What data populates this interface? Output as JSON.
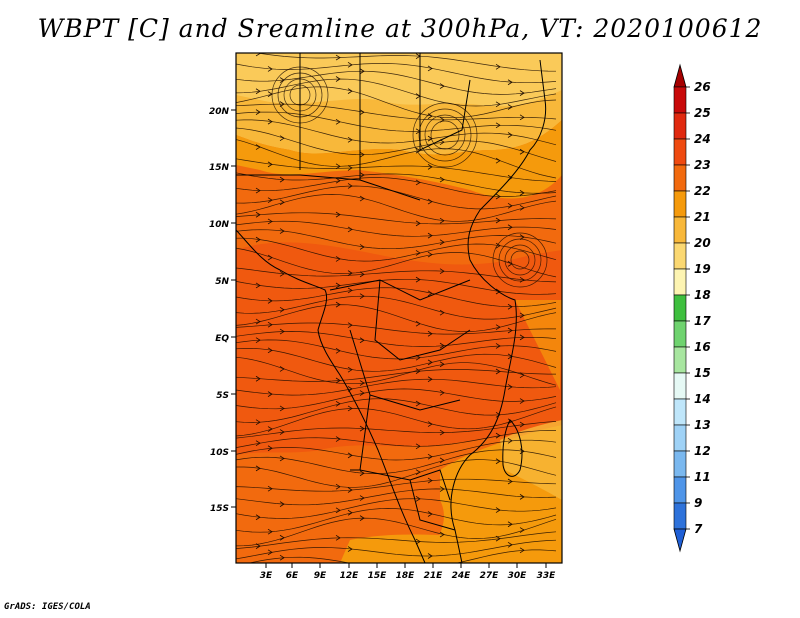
{
  "title": "WBPT [C] and Sreamline at 300hPa, VT: 2020100612",
  "credit": "GrADS: IGES/COLA",
  "map": {
    "lat_ticks": [
      "20N",
      "15N",
      "10N",
      "5N",
      "EQ",
      "5S",
      "10S",
      "15S"
    ],
    "lon_ticks": [
      "3E",
      "6E",
      "9E",
      "12E",
      "15E",
      "18E",
      "21E",
      "24E",
      "27E",
      "30E",
      "33E"
    ]
  },
  "colorbar": {
    "levels": [
      {
        "label": "26",
        "color": "#a50000"
      },
      {
        "label": "25",
        "color": "#c80a0a"
      },
      {
        "label": "24",
        "color": "#e0290f"
      },
      {
        "label": "23",
        "color": "#ef4a10"
      },
      {
        "label": "22",
        "color": "#f26a0e"
      },
      {
        "label": "21",
        "color": "#f59a0c"
      },
      {
        "label": "20",
        "color": "#f8b83a"
      },
      {
        "label": "19",
        "color": "#fbd872"
      },
      {
        "label": "18",
        "color": "#fdf4b2"
      },
      {
        "label": "17",
        "color": "#3fbf3f"
      },
      {
        "label": "16",
        "color": "#6fd36f"
      },
      {
        "label": "15",
        "color": "#a8e6a0"
      },
      {
        "label": "14",
        "color": "#e6f9f5"
      },
      {
        "label": "13",
        "color": "#bfe6fa"
      },
      {
        "label": "12",
        "color": "#9fd2f6"
      },
      {
        "label": "11",
        "color": "#7ab8ef"
      },
      {
        "label": "9",
        "color": "#4f95e8"
      },
      {
        "label": "7",
        "color": "#2e72da"
      }
    ],
    "bottom_color": "#1f5fd6"
  }
}
